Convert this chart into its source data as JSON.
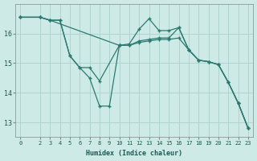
{
  "background_color": "#ceeae6",
  "grid_color": "#aed4cf",
  "line_color": "#2a7a70",
  "xlabel": "Humidex (Indice chaleur)",
  "xlim": [
    -0.5,
    23.5
  ],
  "ylim": [
    12.5,
    17.0
  ],
  "yticks": [
    13,
    14,
    15,
    16
  ],
  "xticks": [
    0,
    2,
    3,
    4,
    5,
    6,
    7,
    8,
    9,
    10,
    11,
    12,
    13,
    14,
    15,
    16,
    17,
    18,
    19,
    20,
    21,
    22,
    23
  ],
  "series": [
    {
      "x": [
        0,
        2,
        3,
        10,
        11,
        12,
        13,
        14,
        15,
        16,
        17,
        18,
        19,
        20,
        21,
        22,
        23
      ],
      "y": [
        16.55,
        16.55,
        16.45,
        15.6,
        15.6,
        15.7,
        15.75,
        15.8,
        15.8,
        15.85,
        15.45,
        15.1,
        15.05,
        14.95,
        14.35,
        13.65,
        12.8
      ]
    },
    {
      "x": [
        0,
        2,
        3,
        4,
        5,
        6,
        7,
        8,
        10,
        11,
        12,
        13,
        14,
        15,
        16,
        17,
        18,
        19,
        20,
        21,
        22,
        23
      ],
      "y": [
        16.55,
        16.55,
        16.45,
        16.45,
        15.25,
        14.85,
        14.85,
        14.4,
        15.6,
        15.6,
        15.75,
        15.8,
        15.85,
        15.85,
        16.2,
        15.45,
        15.1,
        15.05,
        14.95,
        14.35,
        13.65,
        12.8
      ]
    },
    {
      "x": [
        0,
        2,
        3,
        4,
        5,
        6,
        7,
        8,
        9,
        10,
        11,
        12,
        13,
        14,
        15,
        16,
        17,
        18,
        19,
        20,
        21,
        22,
        23
      ],
      "y": [
        16.55,
        16.55,
        16.45,
        16.45,
        15.25,
        14.85,
        14.5,
        13.55,
        13.55,
        15.6,
        15.65,
        16.15,
        16.5,
        16.1,
        16.1,
        16.2,
        15.45,
        15.1,
        15.05,
        14.95,
        14.35,
        13.65,
        12.8
      ]
    }
  ]
}
